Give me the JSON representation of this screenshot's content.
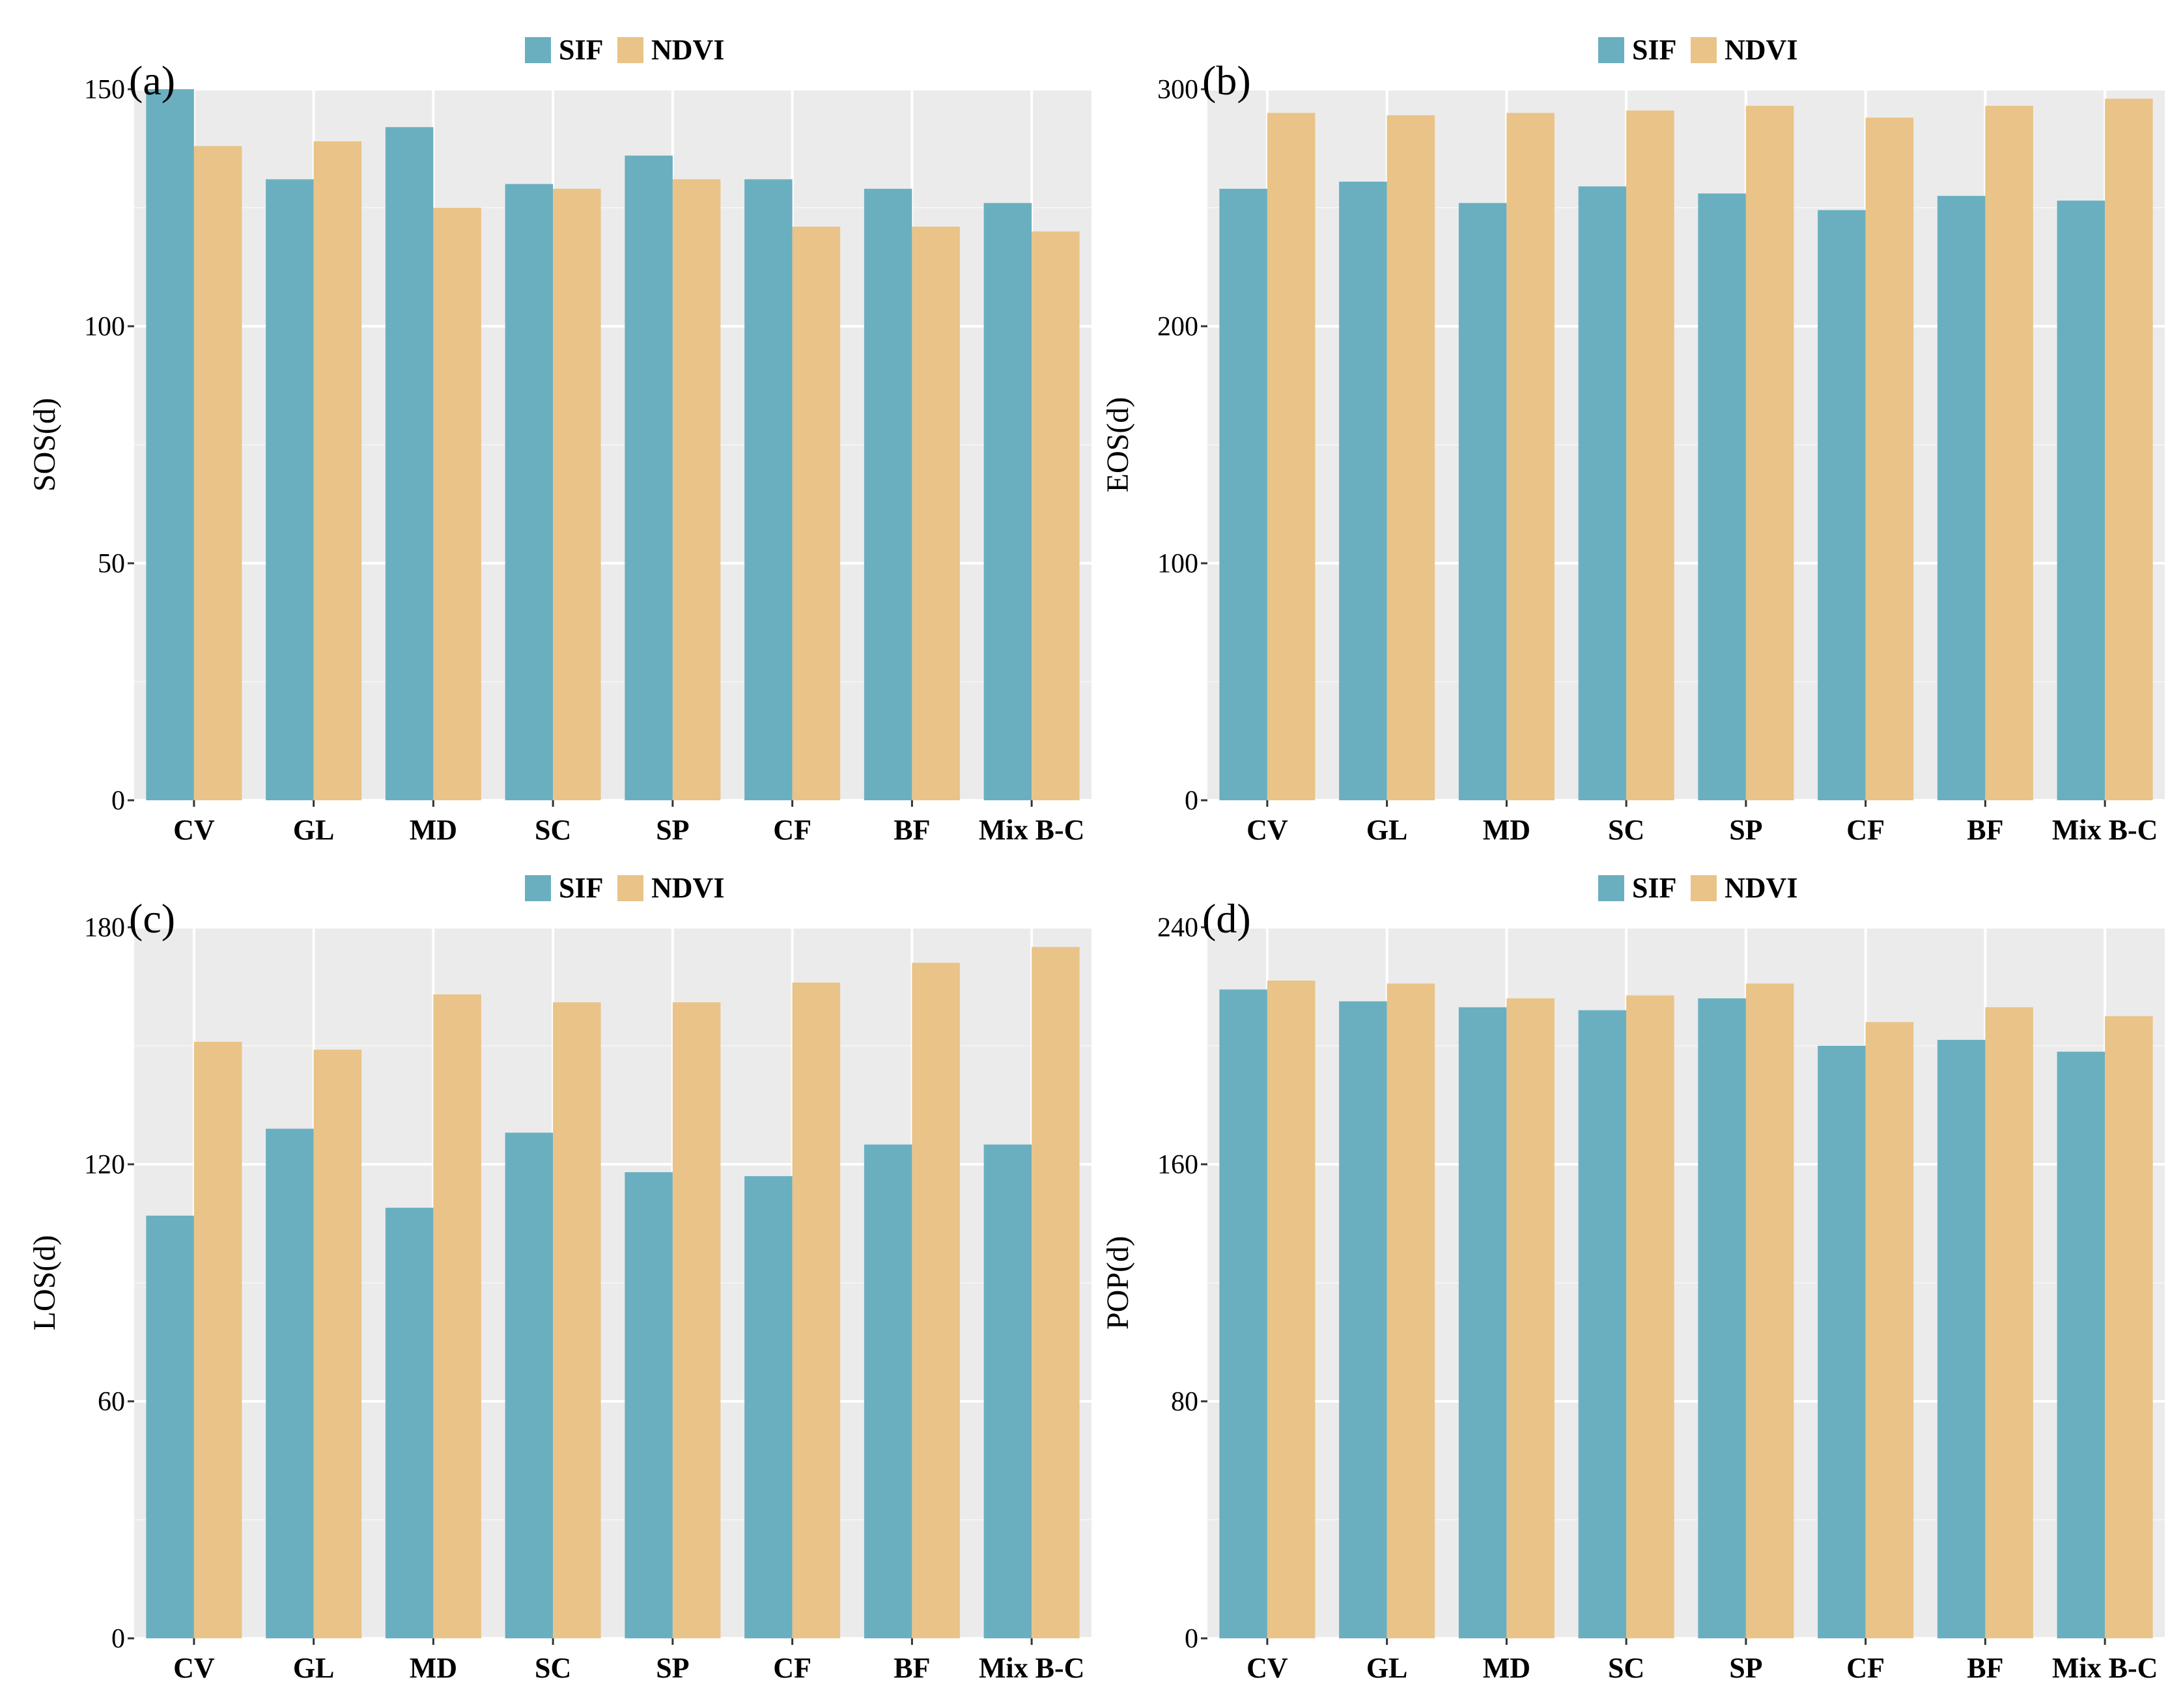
{
  "colors": {
    "sif": "#6aafc0",
    "ndvi": "#e9c387",
    "panel_bg": "#ebebeb",
    "grid_major": "#ffffff",
    "grid_minor": "#f4f4f4",
    "text": "#000000"
  },
  "legend": {
    "sif_label": "SIF",
    "ndvi_label": "NDVI"
  },
  "chart_data": [
    {
      "type": "bar",
      "panel_label": "(a)",
      "categories": [
        "CV",
        "GL",
        "MD",
        "SC",
        "SP",
        "CF",
        "BF",
        "Mix B-C"
      ],
      "series": [
        {
          "name": "SIF",
          "values": [
            150,
            131,
            142,
            130,
            136,
            131,
            129,
            126
          ]
        },
        {
          "name": "NDVI",
          "values": [
            138,
            139,
            125,
            129,
            131,
            121,
            121,
            120
          ]
        }
      ],
      "ylabel": "SOS(d)",
      "ylim": [
        0,
        150
      ],
      "yticks": [
        0,
        50,
        100,
        150
      ],
      "ytick_labels": [
        "0",
        "50",
        "100",
        "150"
      ],
      "legend_position": "top"
    },
    {
      "type": "bar",
      "panel_label": "(b)",
      "categories": [
        "CV",
        "GL",
        "MD",
        "SC",
        "SP",
        "CF",
        "BF",
        "Mix B-C"
      ],
      "series": [
        {
          "name": "SIF",
          "values": [
            258,
            261,
            252,
            259,
            256,
            249,
            255,
            253
          ]
        },
        {
          "name": "NDVI",
          "values": [
            290,
            289,
            290,
            291,
            293,
            288,
            293,
            296
          ]
        }
      ],
      "ylabel": "EOS(d)",
      "ylim": [
        0,
        300
      ],
      "yticks": [
        0,
        100,
        200,
        300
      ],
      "ytick_labels": [
        "0",
        "100",
        "200",
        "300"
      ],
      "legend_position": "top"
    },
    {
      "type": "bar",
      "panel_label": "(c)",
      "categories": [
        "CV",
        "GL",
        "MD",
        "SC",
        "SP",
        "CF",
        "BF",
        "Mix B-C"
      ],
      "series": [
        {
          "name": "SIF",
          "values": [
            107,
            129,
            109,
            128,
            118,
            117,
            125,
            125
          ]
        },
        {
          "name": "NDVI",
          "values": [
            151,
            149,
            163,
            161,
            161,
            166,
            171,
            175
          ]
        }
      ],
      "ylabel": "LOS(d)",
      "ylim": [
        0,
        180
      ],
      "yticks": [
        0,
        60,
        120,
        180
      ],
      "ytick_labels": [
        "0",
        "60",
        "120",
        "180"
      ],
      "legend_position": "top"
    },
    {
      "type": "bar",
      "panel_label": "(d)",
      "categories": [
        "CV",
        "GL",
        "MD",
        "SC",
        "SP",
        "CF",
        "BF",
        "Mix B-C"
      ],
      "series": [
        {
          "name": "SIF",
          "values": [
            219,
            215,
            213,
            212,
            216,
            200,
            202,
            198
          ]
        },
        {
          "name": "NDVI",
          "values": [
            222,
            221,
            216,
            217,
            221,
            208,
            213,
            210
          ]
        }
      ],
      "ylabel": "POP(d)",
      "ylim": [
        0,
        240
      ],
      "yticks": [
        0,
        80,
        160,
        240
      ],
      "ytick_labels": [
        "0",
        "80",
        "160",
        "240"
      ],
      "legend_position": "top"
    }
  ]
}
